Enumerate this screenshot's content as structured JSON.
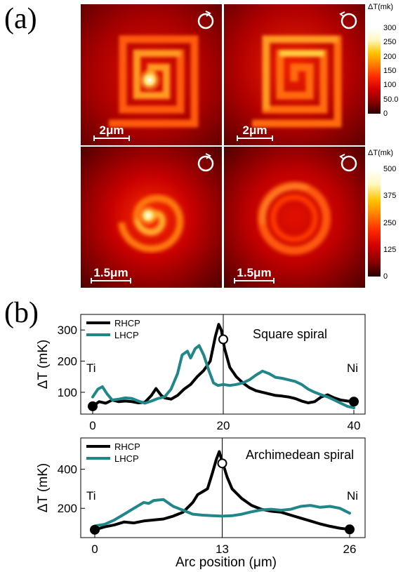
{
  "panel_labels": {
    "a": "(a)",
    "b": "(b)"
  },
  "maps": {
    "scalebar_square": "2μm",
    "scalebar_archimedean": "1.5μm",
    "colorbar_title": "ΔT(mk)",
    "colorbar_top": {
      "ticks": [
        "300",
        "250",
        "200",
        "150",
        "100",
        "50.0",
        "0"
      ],
      "max": 300
    },
    "colorbar_bottom": {
      "ticks": [
        "500",
        "375",
        "250",
        "125",
        "0"
      ],
      "max": 500
    },
    "heat_colors": [
      "#2a0000",
      "#8b0000",
      "#d40000",
      "#ff2a00",
      "#ff7a00",
      "#ffc400",
      "#fff8c0",
      "#ffffff"
    ]
  },
  "chart_data": [
    {
      "type": "line",
      "ylabel": "ΔT (mK)",
      "xlabel": "",
      "annotation": "Square spiral",
      "left_label": "Ti",
      "right_label": "Ni",
      "xlim": [
        0,
        40
      ],
      "ylim": [
        30,
        350
      ],
      "xticks": [
        "0",
        "20",
        "40"
      ],
      "yticks": [
        "100",
        "200",
        "300"
      ],
      "vline": 20,
      "legend_position": "top-left",
      "series": [
        {
          "name": "RHCP",
          "color": "#000000",
          "x": [
            0,
            1,
            2,
            3,
            4,
            5,
            6,
            7,
            8,
            9,
            9.7,
            10.5,
            11,
            12,
            13,
            14,
            15,
            16,
            17,
            18,
            18.8,
            19.3,
            19.7,
            20.2,
            21,
            22,
            23,
            24,
            25,
            26,
            27,
            28,
            29,
            30,
            31,
            32,
            33,
            34,
            35,
            36,
            37,
            38,
            39,
            40
          ],
          "y": [
            55,
            70,
            65,
            75,
            70,
            72,
            70,
            66,
            68,
            90,
            112,
            90,
            82,
            78,
            90,
            110,
            125,
            150,
            170,
            200,
            280,
            318,
            300,
            240,
            180,
            150,
            130,
            115,
            105,
            100,
            95,
            90,
            88,
            85,
            80,
            72,
            66,
            70,
            85,
            92,
            82,
            75,
            72,
            70
          ]
        },
        {
          "name": "LHCP",
          "color": "#21868a",
          "x": [
            0,
            0.8,
            1.5,
            2.2,
            3,
            4,
            5,
            6,
            7,
            8,
            9,
            10,
            11,
            12,
            13,
            13.7,
            14.5,
            15,
            15.7,
            16.3,
            17,
            17.8,
            18.5,
            19.2,
            20,
            21,
            22,
            23,
            24,
            25,
            26,
            27,
            28,
            29,
            30,
            31,
            32,
            33,
            34,
            35,
            36,
            37,
            38,
            39,
            40
          ],
          "y": [
            85,
            110,
            118,
            95,
            75,
            78,
            82,
            80,
            72,
            65,
            72,
            80,
            85,
            110,
            160,
            220,
            232,
            210,
            240,
            250,
            220,
            170,
            130,
            122,
            125,
            122,
            125,
            130,
            140,
            155,
            168,
            160,
            148,
            145,
            140,
            135,
            125,
            110,
            100,
            92,
            85,
            75,
            65,
            55,
            50
          ]
        }
      ],
      "markers": [
        {
          "x": 0,
          "y": 55,
          "fill": "black"
        },
        {
          "x": 20,
          "y": 270,
          "fill": "white"
        },
        {
          "x": 40,
          "y": 70,
          "fill": "black"
        }
      ]
    },
    {
      "type": "line",
      "ylabel": "ΔT (mK)",
      "xlabel": "Arc position (μm)",
      "annotation": "Archimedean spiral",
      "left_label": "Ti",
      "right_label": "Ni",
      "xlim": [
        0,
        26
      ],
      "ylim": [
        50,
        560
      ],
      "xticks": [
        "0",
        "13",
        "26"
      ],
      "yticks": [
        "200",
        "400"
      ],
      "vline": 13,
      "legend_position": "top-left",
      "series": [
        {
          "name": "RHCP",
          "color": "#000000",
          "x": [
            0,
            1,
            2,
            3,
            4,
            5,
            6,
            7,
            8,
            9,
            10,
            10.5,
            11,
            11.5,
            12,
            12.4,
            12.7,
            13,
            13.5,
            14,
            15,
            16,
            17,
            18,
            19,
            20,
            21,
            22,
            23,
            24,
            25,
            26
          ],
          "y": [
            90,
            105,
            115,
            130,
            125,
            135,
            140,
            145,
            160,
            180,
            230,
            270,
            285,
            300,
            380,
            450,
            490,
            440,
            360,
            300,
            250,
            215,
            195,
            185,
            180,
            165,
            150,
            135,
            120,
            108,
            98,
            92
          ]
        },
        {
          "name": "LHCP",
          "color": "#21868a",
          "x": [
            0,
            1,
            2,
            3,
            4,
            5,
            5.5,
            6,
            7,
            8,
            9,
            10,
            11,
            12,
            13,
            14,
            15,
            16,
            17,
            18,
            19,
            20,
            21,
            22,
            23,
            24,
            25,
            26
          ],
          "y": [
            110,
            118,
            140,
            170,
            200,
            230,
            225,
            240,
            245,
            210,
            190,
            170,
            165,
            162,
            160,
            162,
            170,
            182,
            192,
            195,
            190,
            195,
            210,
            215,
            205,
            210,
            200,
            175
          ]
        }
      ],
      "markers": [
        {
          "x": 0,
          "y": 90,
          "fill": "black"
        },
        {
          "x": 13,
          "y": 430,
          "fill": "white"
        },
        {
          "x": 26,
          "y": 92,
          "fill": "black"
        }
      ]
    }
  ]
}
